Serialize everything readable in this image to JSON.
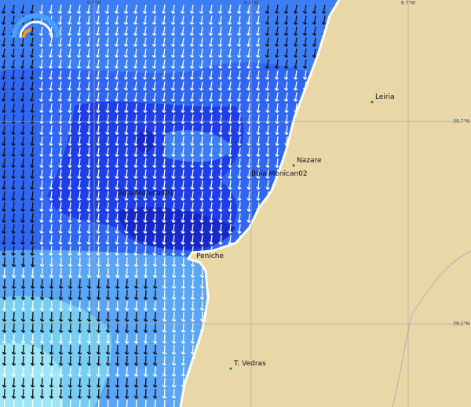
{
  "grid_labels": {
    "top": [
      "9.7°W",
      "9.2°W",
      "8.7°W"
    ],
    "right": [
      "39.7°N",
      "39.2°N"
    ]
  },
  "places": [
    {
      "label": "Leiria"
    },
    {
      "label": "Nazare"
    },
    {
      "label": "Bóia Monican02"
    },
    {
      "label": "Bóia Monican01"
    },
    {
      "label": "Peniche"
    },
    {
      "label": "T. Vedras"
    }
  ]
}
